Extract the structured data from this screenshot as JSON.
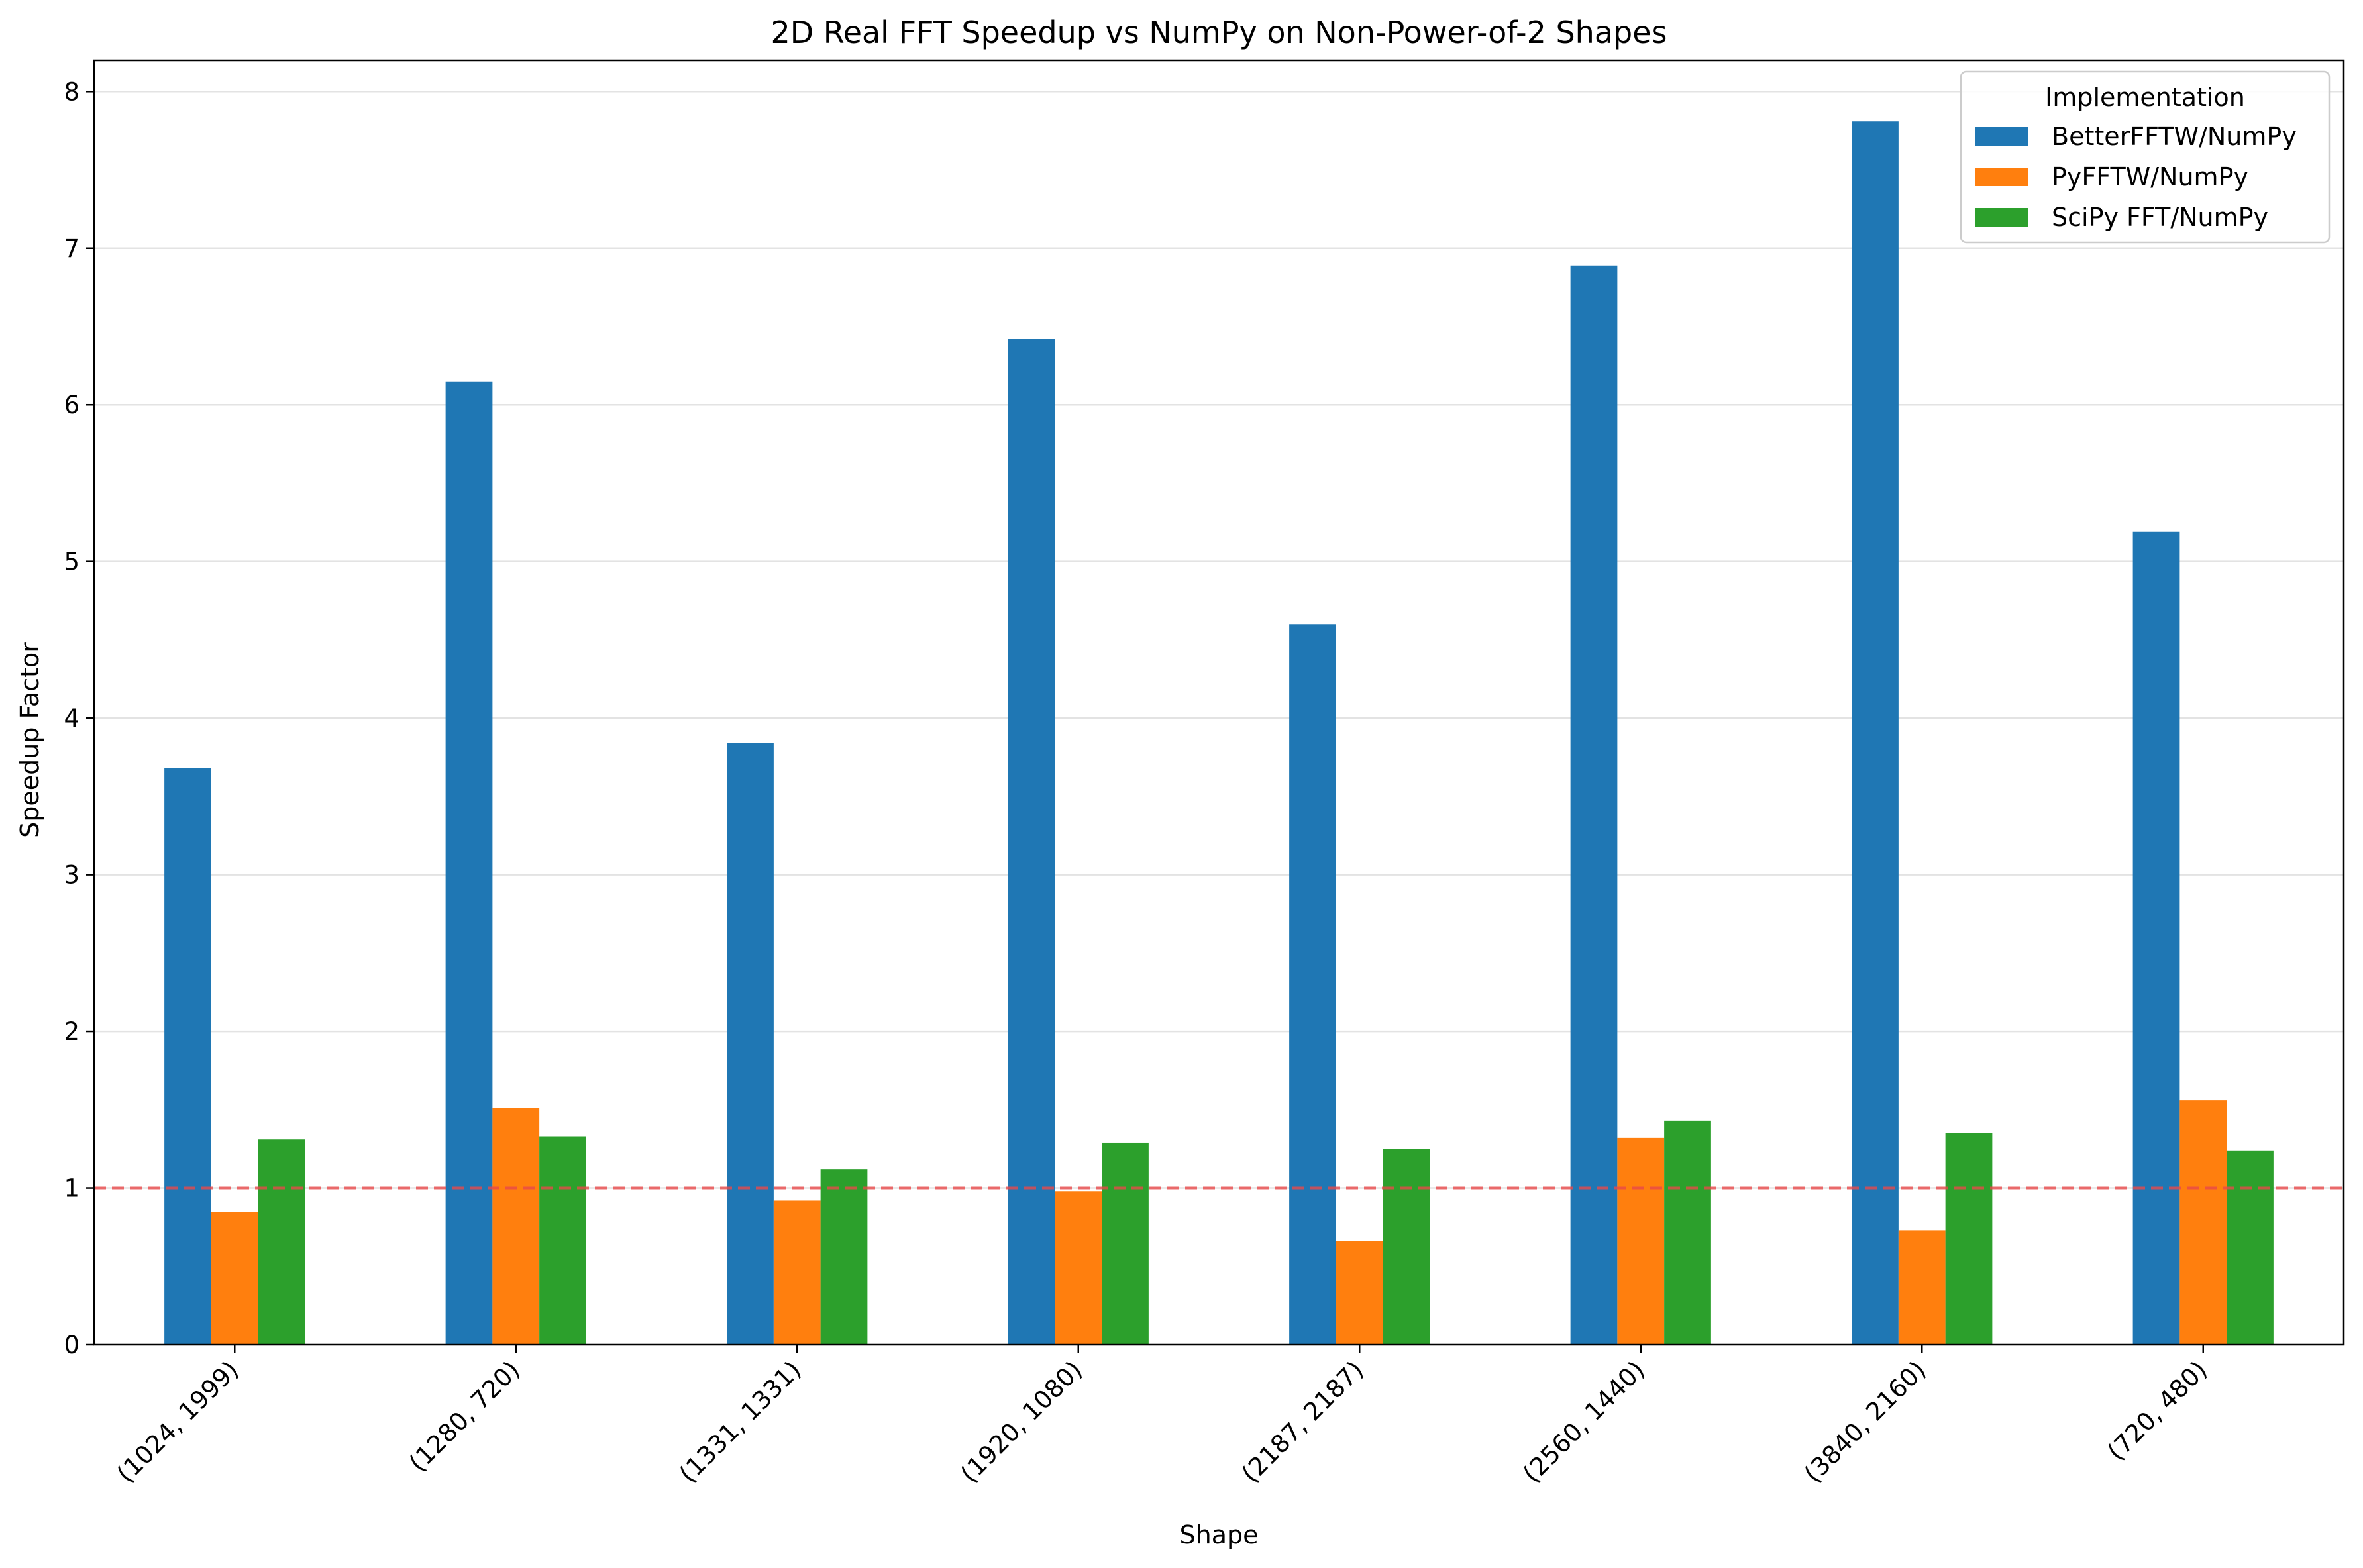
{
  "chart_data": {
    "type": "bar",
    "title": "2D Real FFT Speedup vs NumPy on Non-Power-of-2 Shapes",
    "xlabel": "Shape",
    "ylabel": "Speedup Factor",
    "categories": [
      "(1024, 1999)",
      "(1280, 720)",
      "(1331, 1331)",
      "(1920, 1080)",
      "(2187, 2187)",
      "(2560, 1440)",
      "(3840, 2160)",
      "(720, 480)"
    ],
    "yticks": [
      0,
      1,
      2,
      3,
      4,
      5,
      6,
      7,
      8
    ],
    "ylim": [
      0,
      8.2
    ],
    "grid": "horizontal",
    "reference_line": {
      "y": 1.0,
      "style": "dashed",
      "color": "#e8494a"
    },
    "legend": {
      "title": "Implementation",
      "placement": "top-right"
    },
    "series": [
      {
        "name": "BetterFFTW/NumPy",
        "color": "#1f77b4",
        "values": [
          3.68,
          6.15,
          3.84,
          6.42,
          4.6,
          6.89,
          7.81,
          5.19
        ]
      },
      {
        "name": "PyFFTW/NumPy",
        "color": "#ff7f0e",
        "values": [
          0.85,
          1.51,
          0.92,
          0.98,
          0.66,
          1.32,
          0.73,
          1.56
        ]
      },
      {
        "name": "SciPy FFT/NumPy",
        "color": "#2ca02c",
        "values": [
          1.31,
          1.33,
          1.12,
          1.29,
          1.25,
          1.43,
          1.35,
          1.24
        ]
      }
    ]
  }
}
